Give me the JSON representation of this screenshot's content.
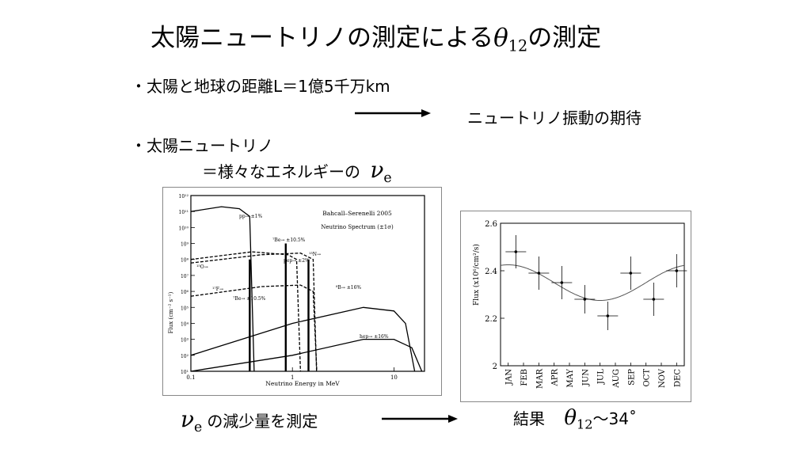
{
  "slide": {
    "title_text": "太陽ニュートリノの測定による",
    "title_theta": "θ",
    "title_theta_sub": "12",
    "title_suffix": "の測定",
    "bullet1": "・太陽と地球の距離L＝1億5千万km",
    "oscillation_text": "ニュートリノ振動の期待",
    "bullet2_line1": "・太陽ニュートリノ",
    "bullet2_line2": "＝様々なエネルギーの",
    "nu": "ν",
    "nu_sub": "e",
    "bottom_left_text": "の減少量を測定",
    "result_label": "結果",
    "result_value": "〜34˚"
  },
  "chart_data": [
    {
      "type": "line",
      "title": "Bahcall–Serenelli 2005",
      "subtitle": "Neutrino Spectrum (±1σ)",
      "xlabel": "Neutrino Energy in MeV",
      "ylabel": "Flux (cm⁻² s⁻¹)",
      "xscale": "log",
      "yscale": "log",
      "xlim": [
        0.1,
        20
      ],
      "ylim": [
        10.0,
        1000000000000.0
      ],
      "x_tick_labels": [
        "0.1",
        "1",
        "10"
      ],
      "y_tick_labels": [
        "10¹²",
        "10¹¹",
        "10¹⁰",
        "10⁹",
        "10⁸",
        "10⁷",
        "10⁶",
        "10⁵",
        "10⁴",
        "10³",
        "10²",
        "10¹"
      ],
      "series_labels": [
        "pp→ ±1%",
        "⁷Be→ ±10.5%",
        "¹³N→",
        "¹⁵O→",
        "¹⁷F→",
        "pep→ ±2%",
        "⁷Be→ ±10.5%",
        "⁸B→ ±16%",
        "hep→ ±16%"
      ],
      "series": [
        {
          "name": "pp",
          "x": [
            0.1,
            0.2,
            0.3,
            0.38,
            0.42
          ],
          "y": [
            100000000000.0,
            200000000000.0,
            150000000000.0,
            50000000000.0,
            10.0
          ]
        },
        {
          "name": "13N",
          "x": [
            0.1,
            0.4,
            0.9,
            1.1,
            1.2
          ],
          "y": [
            100000000.0,
            300000000.0,
            200000000.0,
            100000000.0,
            10.0
          ]
        },
        {
          "name": "15O",
          "x": [
            0.1,
            0.5,
            1.2,
            1.6,
            1.73
          ],
          "y": [
            60000000.0,
            200000000.0,
            250000000.0,
            100000000.0,
            10.0
          ]
        },
        {
          "name": "17F",
          "x": [
            0.1,
            0.5,
            1.2,
            1.6,
            1.74
          ],
          "y": [
            500000.0,
            2000000.0,
            2500000.0,
            1000000.0,
            10.0
          ]
        },
        {
          "name": "8B",
          "x": [
            0.1,
            1,
            5,
            10,
            13,
            16
          ],
          "y": [
            100.0,
            10000.0,
            100000.0,
            60000.0,
            10000.0,
            10.0
          ]
        },
        {
          "name": "hep",
          "x": [
            0.1,
            1,
            5,
            10,
            15,
            18.8
          ],
          "y": [
            1,
            100.0,
            1000.0,
            1000.0,
            300.0,
            10.0
          ]
        }
      ],
      "lines": [
        {
          "name": "7Be 0.38 MeV",
          "x": 0.38,
          "y": 100000000.0
        },
        {
          "name": "7Be 0.86 MeV",
          "x": 0.86,
          "y": 1000000000.0
        },
        {
          "name": "pep",
          "x": 1.44,
          "y": 100000000.0
        }
      ]
    },
    {
      "type": "scatter",
      "xlabel": "",
      "ylabel": "Flux (x10⁶/cm²/s)",
      "categories": [
        "JAN",
        "FEB",
        "MAR",
        "APR",
        "MAY",
        "JUN",
        "JUL",
        "AUG",
        "SEP",
        "OCT",
        "NOV",
        "DEC"
      ],
      "ylim": [
        2.0,
        2.6
      ],
      "y_ticks": [
        "2",
        "2.2",
        "2.4",
        "2.6"
      ],
      "points": [
        {
          "x_month": 1.5,
          "y": 2.48,
          "err": 0.07
        },
        {
          "x_month": 3.0,
          "y": 2.39,
          "err": 0.07
        },
        {
          "x_month": 4.5,
          "y": 2.35,
          "err": 0.07
        },
        {
          "x_month": 6.0,
          "y": 2.28,
          "err": 0.06
        },
        {
          "x_month": 7.5,
          "y": 2.21,
          "err": 0.06
        },
        {
          "x_month": 9.0,
          "y": 2.39,
          "err": 0.07
        },
        {
          "x_month": 10.5,
          "y": 2.28,
          "err": 0.07
        },
        {
          "x_month": 12.0,
          "y": 2.4,
          "err": 0.07
        }
      ],
      "curve": {
        "mean": 2.35,
        "amplitude": 0.075,
        "peak_month": 1.0,
        "period_months": 12
      }
    }
  ]
}
